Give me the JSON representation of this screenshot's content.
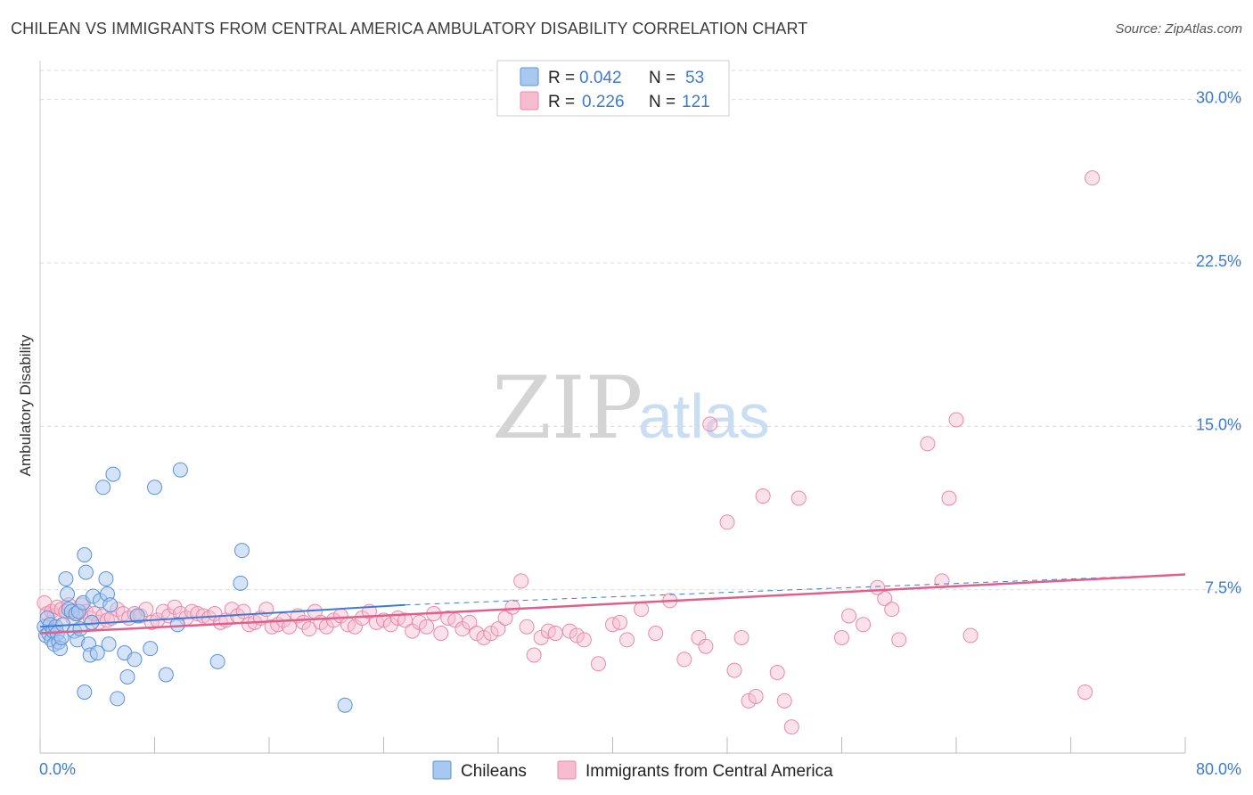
{
  "title": "CHILEAN VS IMMIGRANTS FROM CENTRAL AMERICA AMBULATORY DISABILITY CORRELATION CHART",
  "source": "Source: ZipAtlas.com",
  "watermark": {
    "zip": "ZIP",
    "atlas": "atlas"
  },
  "legend": {
    "row1": {
      "r_label": "R =",
      "r_value": "0.042",
      "n_label": "N =",
      "n_value": "53"
    },
    "row2": {
      "r_label": "R =",
      "r_value": "0.226",
      "n_label": "N =",
      "n_value": "121"
    }
  },
  "bottom_legend": {
    "series1": "Chileans",
    "series2": "Immigrants from Central America"
  },
  "colors": {
    "blue_fill": "#a9c8ef",
    "blue_stroke": "#5b93d8",
    "blue_line": "#3f7bd4",
    "pink_fill": "#f7bcd0",
    "pink_stroke": "#e98aaa",
    "pink_line": "#e0608c",
    "grid": "#d9d9d9",
    "tick_label": "#3c7ad6"
  },
  "chart_data": {
    "type": "scatter",
    "title": "CHILEAN VS IMMIGRANTS FROM CENTRAL AMERICA AMBULATORY DISABILITY CORRELATION CHART",
    "xlabel": "",
    "ylabel": "Ambulatory Disability",
    "xlim": [
      0,
      80
    ],
    "ylim": [
      0,
      31.5
    ],
    "x_ticks": [
      "0.0%",
      "80.0%"
    ],
    "y_ticks": [
      {
        "value": 7.5,
        "label": "7.5%"
      },
      {
        "value": 15.0,
        "label": "15.0%"
      },
      {
        "value": 22.5,
        "label": "22.5%"
      },
      {
        "value": 30.0,
        "label": "30.0%"
      }
    ],
    "grid": true,
    "legend_placement": "top-center",
    "series": [
      {
        "name": "Chileans",
        "R": 0.042,
        "N": 53,
        "trend": {
          "x": [
            0,
            25.5
          ],
          "y": [
            5.8,
            6.8
          ],
          "dashed_to": [
            80,
            8.2
          ]
        },
        "points": [
          [
            0.3,
            5.8
          ],
          [
            0.4,
            5.4
          ],
          [
            0.5,
            6.2
          ],
          [
            0.6,
            5.5
          ],
          [
            0.7,
            5.9
          ],
          [
            0.8,
            5.2
          ],
          [
            0.9,
            5.6
          ],
          [
            1.0,
            5.0
          ],
          [
            1.1,
            5.8
          ],
          [
            1.2,
            5.5
          ],
          [
            1.3,
            5.1
          ],
          [
            1.4,
            4.8
          ],
          [
            1.5,
            5.3
          ],
          [
            1.6,
            5.9
          ],
          [
            1.8,
            8.0
          ],
          [
            1.9,
            7.3
          ],
          [
            2.0,
            6.6
          ],
          [
            2.2,
            6.5
          ],
          [
            2.4,
            5.6
          ],
          [
            2.5,
            6.4
          ],
          [
            2.6,
            5.2
          ],
          [
            2.7,
            6.5
          ],
          [
            2.8,
            5.7
          ],
          [
            3.0,
            6.9
          ],
          [
            3.1,
            9.1
          ],
          [
            3.2,
            8.3
          ],
          [
            3.4,
            5.0
          ],
          [
            3.5,
            4.5
          ],
          [
            3.6,
            6.0
          ],
          [
            3.7,
            7.2
          ],
          [
            4.0,
            4.6
          ],
          [
            4.2,
            7.0
          ],
          [
            4.4,
            12.2
          ],
          [
            4.6,
            8.0
          ],
          [
            4.7,
            7.3
          ],
          [
            4.8,
            5.0
          ],
          [
            4.9,
            6.8
          ],
          [
            5.1,
            12.8
          ],
          [
            5.4,
            2.5
          ],
          [
            5.9,
            4.6
          ],
          [
            6.1,
            3.5
          ],
          [
            6.6,
            4.3
          ],
          [
            6.8,
            6.3
          ],
          [
            7.7,
            4.8
          ],
          [
            8.0,
            12.2
          ],
          [
            8.8,
            3.6
          ],
          [
            9.6,
            5.9
          ],
          [
            9.8,
            13.0
          ],
          [
            12.4,
            4.2
          ],
          [
            14.0,
            7.8
          ],
          [
            14.1,
            9.3
          ],
          [
            3.1,
            2.8
          ],
          [
            21.3,
            2.2
          ]
        ]
      },
      {
        "name": "Immigrants from Central America",
        "R": 0.226,
        "N": 121,
        "trend": {
          "x": [
            0,
            80
          ],
          "y": [
            5.5,
            8.2
          ]
        },
        "points": [
          [
            0.3,
            6.9
          ],
          [
            0.5,
            6.4
          ],
          [
            0.8,
            6.5
          ],
          [
            1.0,
            6.3
          ],
          [
            1.2,
            6.7
          ],
          [
            1.5,
            6.6
          ],
          [
            1.8,
            6.5
          ],
          [
            2.0,
            6.8
          ],
          [
            2.3,
            6.2
          ],
          [
            2.6,
            6.4
          ],
          [
            2.9,
            6.8
          ],
          [
            3.2,
            6.5
          ],
          [
            3.5,
            6.2
          ],
          [
            3.8,
            6.4
          ],
          [
            4.1,
            6.0
          ],
          [
            4.4,
            6.3
          ],
          [
            4.7,
            6.1
          ],
          [
            5.0,
            6.2
          ],
          [
            5.4,
            6.6
          ],
          [
            5.8,
            6.4
          ],
          [
            6.2,
            6.2
          ],
          [
            6.6,
            6.4
          ],
          [
            7.0,
            6.3
          ],
          [
            7.4,
            6.6
          ],
          [
            7.8,
            6.0
          ],
          [
            8.2,
            6.1
          ],
          [
            8.6,
            6.5
          ],
          [
            9.0,
            6.3
          ],
          [
            9.4,
            6.7
          ],
          [
            9.8,
            6.4
          ],
          [
            10.2,
            6.2
          ],
          [
            10.6,
            6.5
          ],
          [
            11.0,
            6.4
          ],
          [
            11.4,
            6.3
          ],
          [
            11.8,
            6.2
          ],
          [
            12.2,
            6.4
          ],
          [
            12.6,
            6.0
          ],
          [
            13.0,
            6.1
          ],
          [
            13.4,
            6.6
          ],
          [
            13.8,
            6.3
          ],
          [
            14.2,
            6.5
          ],
          [
            14.6,
            5.9
          ],
          [
            15.0,
            6.0
          ],
          [
            15.4,
            6.2
          ],
          [
            15.8,
            6.6
          ],
          [
            16.2,
            5.8
          ],
          [
            16.6,
            5.9
          ],
          [
            17.0,
            6.1
          ],
          [
            17.4,
            5.8
          ],
          [
            18.0,
            6.3
          ],
          [
            18.4,
            6.0
          ],
          [
            18.8,
            5.7
          ],
          [
            19.2,
            6.5
          ],
          [
            19.6,
            6.0
          ],
          [
            20.0,
            5.8
          ],
          [
            20.5,
            6.1
          ],
          [
            21.0,
            6.3
          ],
          [
            21.5,
            5.9
          ],
          [
            22.0,
            5.8
          ],
          [
            22.5,
            6.2
          ],
          [
            23.0,
            6.5
          ],
          [
            23.5,
            6.0
          ],
          [
            24.0,
            6.1
          ],
          [
            24.5,
            5.9
          ],
          [
            25.0,
            6.2
          ],
          [
            25.5,
            6.1
          ],
          [
            26.0,
            5.6
          ],
          [
            26.5,
            6.0
          ],
          [
            27.0,
            5.8
          ],
          [
            27.5,
            6.4
          ],
          [
            28.0,
            5.5
          ],
          [
            28.5,
            6.2
          ],
          [
            29.0,
            6.1
          ],
          [
            29.5,
            5.7
          ],
          [
            30.0,
            6.0
          ],
          [
            30.5,
            5.5
          ],
          [
            31.0,
            5.3
          ],
          [
            31.5,
            5.5
          ],
          [
            32.0,
            5.7
          ],
          [
            32.5,
            6.2
          ],
          [
            33.0,
            6.7
          ],
          [
            34.0,
            5.8
          ],
          [
            34.5,
            4.5
          ],
          [
            35.0,
            5.3
          ],
          [
            35.5,
            5.6
          ],
          [
            36.0,
            5.5
          ],
          [
            37.0,
            5.6
          ],
          [
            37.5,
            5.4
          ],
          [
            38.0,
            5.2
          ],
          [
            39.0,
            4.1
          ],
          [
            40.0,
            5.9
          ],
          [
            40.5,
            6.0
          ],
          [
            41.0,
            5.2
          ],
          [
            42.0,
            6.6
          ],
          [
            43.0,
            5.5
          ],
          [
            44.0,
            7.0
          ],
          [
            45.0,
            4.3
          ],
          [
            46.0,
            5.3
          ],
          [
            46.5,
            4.9
          ],
          [
            33.6,
            7.9
          ],
          [
            49.0,
            5.3
          ],
          [
            49.5,
            2.4
          ],
          [
            50.0,
            2.6
          ],
          [
            50.5,
            11.8
          ],
          [
            51.5,
            3.7
          ],
          [
            52.0,
            2.4
          ],
          [
            52.5,
            1.2
          ],
          [
            56.0,
            5.3
          ],
          [
            56.5,
            6.3
          ],
          [
            57.5,
            5.9
          ],
          [
            59.0,
            7.1
          ],
          [
            58.5,
            7.6
          ],
          [
            59.5,
            6.6
          ],
          [
            60.0,
            5.2
          ],
          [
            62.0,
            14.2
          ],
          [
            63.0,
            7.9
          ],
          [
            63.5,
            11.7
          ],
          [
            64.0,
            15.3
          ],
          [
            65.0,
            5.4
          ],
          [
            46.8,
            15.1
          ],
          [
            48.0,
            10.6
          ],
          [
            73.0,
            2.8
          ],
          [
            73.5,
            26.4
          ],
          [
            53.0,
            11.7
          ],
          [
            48.5,
            3.8
          ]
        ]
      }
    ]
  }
}
